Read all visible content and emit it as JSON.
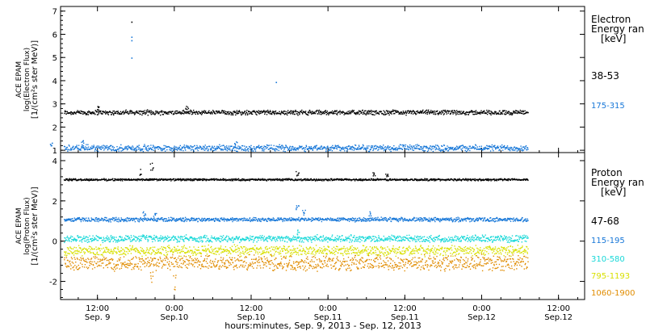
{
  "chart_data": [
    {
      "type": "scatter",
      "ylabel_lines": [
        "ACE EPAM",
        "log(Electron Flux)",
        "[1/(cm²s ster MeV)]"
      ],
      "ylim": [
        0.9,
        7.2
      ],
      "yticks": [
        1,
        2,
        3,
        4,
        5,
        6,
        7
      ],
      "legend_title_lines": [
        "Electron",
        "Energy ran",
        "[keV]"
      ],
      "series": [
        {
          "name": "38-53",
          "color": "#000000",
          "baseline": 2.65,
          "spread": 0.12,
          "spikes": [
            {
              "x": 0.5,
              "y": 2.95
            },
            {
              "x": 1.08,
              "y": 2.95
            }
          ]
        },
        {
          "name": "175-315",
          "color": "#1777d8",
          "baseline": 1.12,
          "spread": 0.16,
          "spikes": [
            {
              "x": 0.2,
              "y": 1.35
            },
            {
              "x": 0.4,
              "y": 1.45
            },
            {
              "x": 1.4,
              "y": 1.4
            }
          ]
        }
      ],
      "outliers": [
        {
          "x": 0.72,
          "y": 6.55,
          "color": "#000000"
        },
        {
          "x": 0.72,
          "y": 5.9,
          "color": "#1777d8"
        },
        {
          "x": 0.72,
          "y": 5.75,
          "color": "#1777d8"
        },
        {
          "x": 0.72,
          "y": 5.0,
          "color": "#1777d8"
        },
        {
          "x": 1.66,
          "y": 3.95,
          "color": "#1777d8"
        }
      ]
    },
    {
      "type": "scatter",
      "ylabel_lines": [
        "ACE EPAM",
        "log(Proton Flux)",
        "[1/(cm²s ster MeV)]"
      ],
      "ylim": [
        -2.9,
        4.4
      ],
      "yticks": [
        -2,
        0,
        2,
        4
      ],
      "legend_title_lines": [
        "Proton",
        "Energy ran",
        "[keV]"
      ],
      "series": [
        {
          "name": "47-68",
          "color": "#000000",
          "baseline": 3.08,
          "spread": 0.06,
          "spikes": [
            {
              "x": 0.78,
              "y": 3.6
            },
            {
              "x": 0.85,
              "y": 3.95
            },
            {
              "x": 1.8,
              "y": 3.55
            },
            {
              "x": 2.3,
              "y": 3.45
            },
            {
              "x": 2.38,
              "y": 3.4
            }
          ]
        },
        {
          "name": "115-195",
          "color": "#1777d8",
          "baseline": 1.1,
          "spread": 0.12,
          "spikes": [
            {
              "x": 0.8,
              "y": 1.5
            },
            {
              "x": 0.87,
              "y": 1.45
            },
            {
              "x": 1.8,
              "y": 1.85
            },
            {
              "x": 1.84,
              "y": 1.65
            },
            {
              "x": 2.27,
              "y": 1.5
            }
          ]
        },
        {
          "name": "310-580",
          "color": "#18d8d8",
          "baseline": 0.15,
          "spread": 0.2,
          "spikes": [
            {
              "x": 1.8,
              "y": 0.6
            }
          ]
        },
        {
          "name": "795-1193",
          "color": "#d8e000",
          "baseline": -0.45,
          "spread": 0.3,
          "spikes": []
        },
        {
          "name": "1060-1900",
          "color": "#e08c00",
          "baseline": -1.05,
          "spread": 0.45,
          "spikes": [
            {
              "x": 0.85,
              "y": -2.2
            },
            {
              "x": 1.0,
              "y": -2.5
            }
          ]
        }
      ]
    }
  ],
  "x_axis": {
    "ticks": [
      {
        "x": 0.5,
        "time": "12:00",
        "date": "Sep. 9"
      },
      {
        "x": 1.0,
        "time": "0:00",
        "date": "Sep.10"
      },
      {
        "x": 1.5,
        "time": "12:00",
        "date": "Sep.10"
      },
      {
        "x": 2.0,
        "time": "0:00",
        "date": "Sep.11"
      },
      {
        "x": 2.5,
        "time": "12:00",
        "date": "Sep.11"
      },
      {
        "x": 3.0,
        "time": "0:00",
        "date": "Sep.12"
      },
      {
        "x": 3.5,
        "time": "12:00",
        "date": "Sep.12"
      }
    ],
    "xlim": [
      0.26,
      3.67
    ],
    "data_end": 3.3,
    "label": "hours:minutes, Sep.  9, 2013 - Sep. 12, 2013"
  }
}
